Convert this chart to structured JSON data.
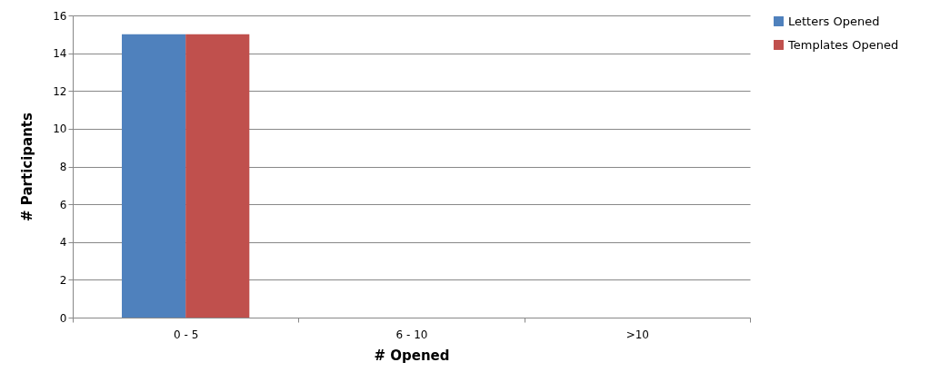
{
  "chart_data": {
    "type": "bar",
    "xlabel": "# Opened",
    "ylabel": "# Participants",
    "categories": [
      "0 - 5",
      "6 - 10",
      ">10"
    ],
    "series": [
      {
        "name": "Letters Opened",
        "color": "#4f81bd",
        "values": [
          15,
          0,
          0
        ]
      },
      {
        "name": "Templates Opened",
        "color": "#c0504d",
        "values": [
          15,
          0,
          0
        ]
      }
    ],
    "ylim": [
      0,
      16
    ],
    "yticks": [
      0,
      2,
      4,
      6,
      8,
      10,
      12,
      14,
      16
    ],
    "grid": "y",
    "legend": "right"
  }
}
